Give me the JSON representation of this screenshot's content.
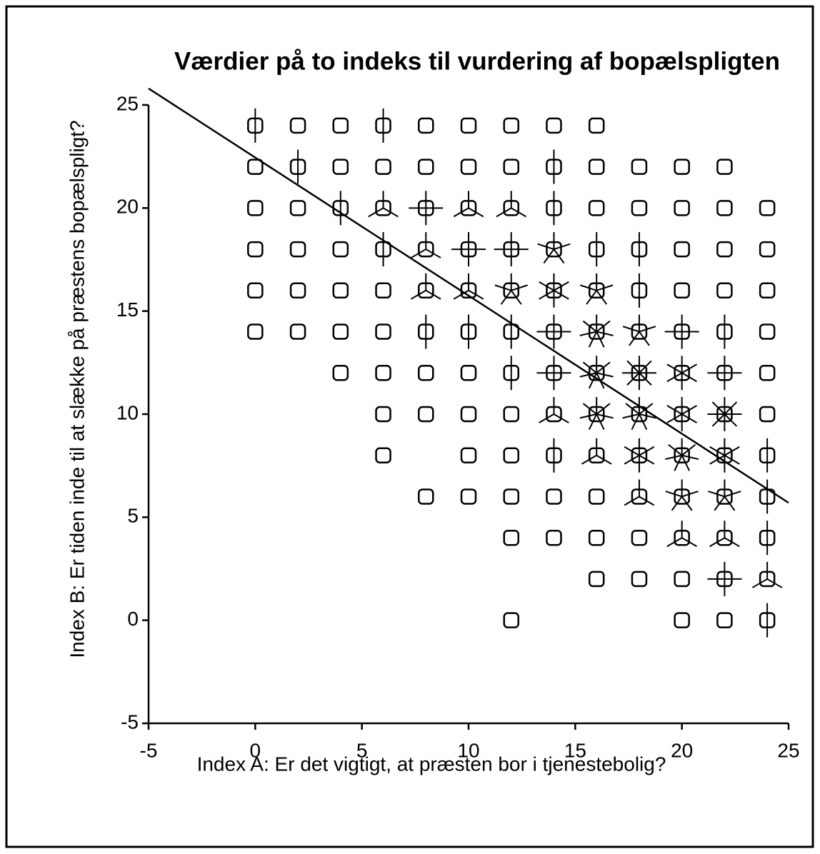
{
  "chart_data": {
    "type": "sunflower",
    "title": "Værdier på to indeks til vurdering af bopælspligten",
    "xlabel": "Index A: Er det vigtigt, at præsten bor i tjenestebolig?",
    "ylabel": "Index B: Er tiden inde til at slække på præstens bopælspligt?",
    "xlim": [
      -5,
      25
    ],
    "ylim": [
      -5,
      25
    ],
    "xticks": [
      -5,
      0,
      5,
      10,
      15,
      20,
      25
    ],
    "yticks": [
      -5,
      0,
      5,
      10,
      15,
      20,
      25
    ],
    "color": "#000000",
    "series": [
      {
        "x": [
          0,
          2,
          4,
          6,
          8,
          10,
          12,
          14,
          16,
          0,
          2,
          4,
          6,
          8,
          10,
          12,
          14,
          16,
          18,
          20,
          22,
          0,
          2,
          4,
          6,
          8,
          10,
          12,
          14,
          16,
          18,
          20,
          22,
          24,
          0,
          2,
          4,
          6,
          8,
          10,
          12,
          14,
          16,
          18,
          20,
          22,
          24,
          0,
          2,
          4,
          6,
          8,
          10,
          12,
          14,
          16,
          18,
          20,
          22,
          24,
          0,
          2,
          4,
          6,
          8,
          10,
          12,
          14,
          16,
          18,
          20,
          22,
          24,
          4,
          6,
          8,
          10,
          12,
          14,
          16,
          18,
          20,
          22,
          24,
          6,
          8,
          10,
          12,
          14,
          16,
          18,
          20,
          22,
          24,
          6,
          10,
          12,
          14,
          16,
          18,
          20,
          22,
          24,
          8,
          10,
          12,
          14,
          16,
          18,
          20,
          22,
          24,
          12,
          14,
          16,
          18,
          20,
          22,
          24,
          16,
          18,
          20,
          22,
          24,
          12,
          20,
          22,
          24
        ],
        "y": [
          24,
          24,
          24,
          24,
          24,
          24,
          24,
          24,
          24,
          22,
          22,
          22,
          22,
          22,
          22,
          22,
          22,
          22,
          22,
          22,
          22,
          20,
          20,
          20,
          20,
          20,
          20,
          20,
          20,
          20,
          20,
          20,
          20,
          20,
          18,
          18,
          18,
          18,
          18,
          18,
          18,
          18,
          18,
          18,
          18,
          18,
          18,
          16,
          16,
          16,
          16,
          16,
          16,
          16,
          16,
          16,
          16,
          16,
          16,
          16,
          14,
          14,
          14,
          14,
          14,
          14,
          14,
          14,
          14,
          14,
          14,
          14,
          14,
          12,
          12,
          12,
          12,
          12,
          12,
          12,
          12,
          12,
          12,
          12,
          10,
          10,
          10,
          10,
          10,
          10,
          10,
          10,
          10,
          10,
          8,
          8,
          8,
          8,
          8,
          8,
          8,
          8,
          8,
          6,
          6,
          6,
          6,
          6,
          6,
          6,
          6,
          6,
          4,
          4,
          4,
          4,
          4,
          4,
          4,
          2,
          2,
          2,
          2,
          2,
          0,
          0,
          0,
          0
        ],
        "count": [
          2,
          1,
          1,
          2,
          1,
          1,
          1,
          1,
          1,
          1,
          2,
          1,
          1,
          1,
          1,
          1,
          2,
          1,
          1,
          1,
          1,
          1,
          1,
          2,
          3,
          4,
          3,
          3,
          2,
          1,
          1,
          1,
          1,
          1,
          1,
          1,
          1,
          2,
          3,
          4,
          4,
          5,
          2,
          2,
          1,
          1,
          1,
          1,
          1,
          1,
          1,
          3,
          3,
          5,
          6,
          5,
          2,
          1,
          1,
          1,
          1,
          1,
          1,
          1,
          2,
          2,
          2,
          4,
          7,
          5,
          4,
          2,
          1,
          1,
          1,
          1,
          1,
          2,
          4,
          7,
          8,
          6,
          4,
          1,
          1,
          1,
          1,
          1,
          3,
          7,
          7,
          6,
          8,
          1,
          1,
          1,
          1,
          2,
          3,
          6,
          7,
          6,
          2,
          1,
          1,
          1,
          1,
          1,
          3,
          5,
          5,
          2,
          1,
          1,
          1,
          1,
          3,
          3,
          2,
          1,
          1,
          1,
          4,
          3,
          1,
          1,
          1,
          2
        ]
      }
    ],
    "fit_line": {
      "x": [
        -5,
        25
      ],
      "y": [
        25.8,
        5.7
      ]
    }
  }
}
